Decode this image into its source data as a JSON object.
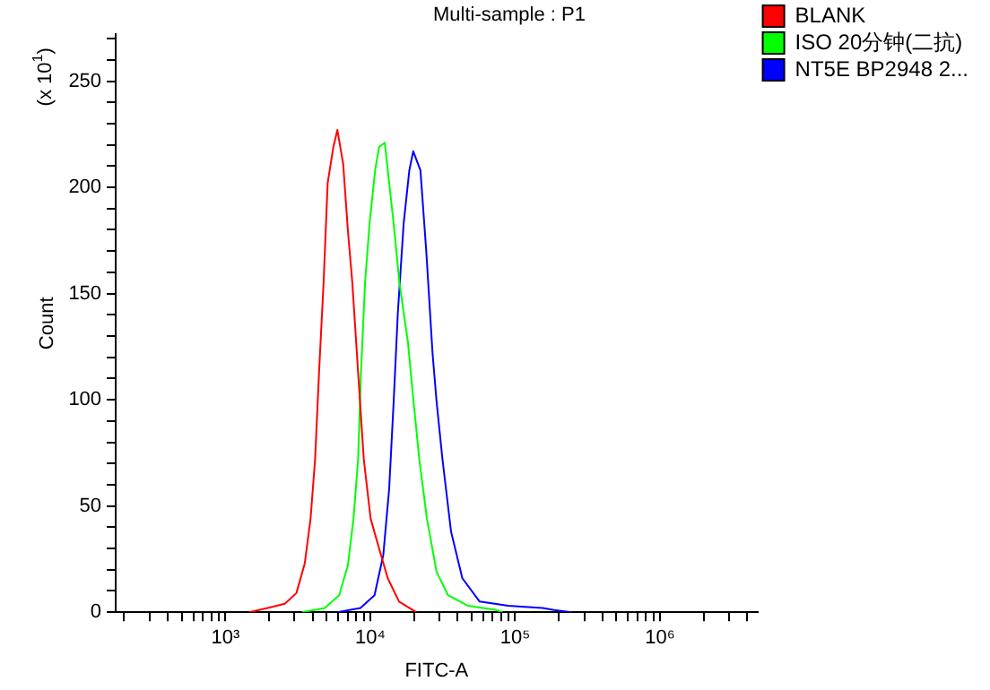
{
  "chart_data": {
    "type": "line",
    "title": "Multi-sample : P1",
    "xlabel": "FITC-A",
    "ylabel": "Count",
    "annotations": [
      "(x 10$^{1}$)"
    ],
    "log": "x",
    "xlim": [
      175,
      4700000
    ],
    "xticks": [
      {
        "value": 200,
        "label": null
      },
      {
        "value": 300,
        "label": null
      },
      {
        "value": 400,
        "label": null
      },
      {
        "value": 500,
        "label": null
      },
      {
        "value": 600,
        "label": null
      },
      {
        "value": 700,
        "label": null
      },
      {
        "value": 800,
        "label": null
      },
      {
        "value": 900,
        "label": null
      },
      {
        "value": 1000,
        "label": "10³"
      },
      {
        "value": 2000,
        "label": null
      },
      {
        "value": 3000,
        "label": null
      },
      {
        "value": 4000,
        "label": null
      },
      {
        "value": 5000,
        "label": null
      },
      {
        "value": 6000,
        "label": null
      },
      {
        "value": 7000,
        "label": null
      },
      {
        "value": 8000,
        "label": null
      },
      {
        "value": 9000,
        "label": null
      },
      {
        "value": 10000,
        "label": "10⁴"
      },
      {
        "value": 20000,
        "label": null
      },
      {
        "value": 30000,
        "label": null
      },
      {
        "value": 40000,
        "label": null
      },
      {
        "value": 50000,
        "label": null
      },
      {
        "value": 60000,
        "label": null
      },
      {
        "value": 70000,
        "label": null
      },
      {
        "value": 80000,
        "label": null
      },
      {
        "value": 90000,
        "label": null
      },
      {
        "value": 100000,
        "label": "10⁵"
      },
      {
        "value": 200000,
        "label": null
      },
      {
        "value": 300000,
        "label": null
      },
      {
        "value": 400000,
        "label": null
      },
      {
        "value": 500000,
        "label": null
      },
      {
        "value": 600000,
        "label": null
      },
      {
        "value": 700000,
        "label": null
      },
      {
        "value": 800000,
        "label": null
      },
      {
        "value": 900000,
        "label": null
      },
      {
        "value": 1000000,
        "label": "10⁶"
      },
      {
        "value": 2000000,
        "label": null
      },
      {
        "value": 3000000,
        "label": null
      },
      {
        "value": 4000000,
        "label": null
      }
    ],
    "ylim": [
      0,
      272
    ],
    "yticks": [
      0,
      {
        "value": 10,
        "label": null
      },
      {
        "value": 20,
        "label": null
      },
      {
        "value": 30,
        "label": null
      },
      {
        "value": 40,
        "label": null
      },
      50,
      {
        "value": 60,
        "label": null
      },
      {
        "value": 70,
        "label": null
      },
      {
        "value": 80,
        "label": null
      },
      {
        "value": 90,
        "label": null
      },
      100,
      {
        "value": 110,
        "label": null
      },
      {
        "value": 120,
        "label": null
      },
      {
        "value": 130,
        "label": null
      },
      {
        "value": 140,
        "label": null
      },
      150,
      {
        "value": 160,
        "label": null
      },
      {
        "value": 170,
        "label": null
      },
      {
        "value": 180,
        "label": null
      },
      {
        "value": 190,
        "label": null
      },
      200,
      {
        "value": 210,
        "label": null
      },
      {
        "value": 220,
        "label": null
      },
      {
        "value": 230,
        "label": null
      },
      {
        "value": 240,
        "label": null
      },
      250,
      {
        "value": 260,
        "label": null
      },
      {
        "value": 270,
        "label": null
      }
    ],
    "grid": false,
    "legend": "top right",
    "marker": "none",
    "line_style": "solid",
    "series": [
      {
        "name": "BLANK",
        "color": "#ff0000",
        "x": [
          1460,
          1950,
          2570,
          3090,
          3530,
          3870,
          4160,
          4430,
          4760,
          5080,
          5560,
          5930,
          6500,
          7000,
          7520,
          8240,
          9020,
          10060,
          11500,
          13200,
          15800,
          20800
        ],
        "values": [
          0,
          2,
          4,
          9,
          23,
          44,
          72,
          113,
          155,
          202,
          219,
          227,
          211,
          180,
          155,
          113,
          72,
          44,
          30,
          16,
          5,
          0
        ]
      },
      {
        "name": "ISO 20分钟(二抗)",
        "color": "#00ff00",
        "x": [
          3380,
          4850,
          6100,
          7000,
          7660,
          8240,
          8630,
          9200,
          9890,
          10800,
          11500,
          12600,
          13500,
          14500,
          15900,
          18200,
          19900,
          21800,
          24600,
          28700,
          34400,
          47300,
          74600,
          81800
        ],
        "values": [
          0,
          2,
          8,
          22,
          44,
          72,
          113,
          155,
          183,
          208,
          219,
          221,
          202,
          183,
          155,
          127,
          99,
          72,
          44,
          19,
          8,
          3,
          1,
          0
        ]
      },
      {
        "name": "NT5E BP2948 2...",
        "color": "#0000ff",
        "x": [
          5930,
          8550,
          10700,
          12300,
          13500,
          14500,
          15500,
          17000,
          18600,
          19800,
          22200,
          24400,
          26900,
          28700,
          31500,
          36100,
          43200,
          56900,
          89700,
          155000,
          186000,
          245000
        ],
        "values": [
          0,
          2,
          8,
          27,
          58,
          99,
          141,
          183,
          208,
          217,
          208,
          169,
          122,
          99,
          72,
          38,
          16,
          5,
          3,
          2,
          1,
          0
        ]
      }
    ]
  }
}
